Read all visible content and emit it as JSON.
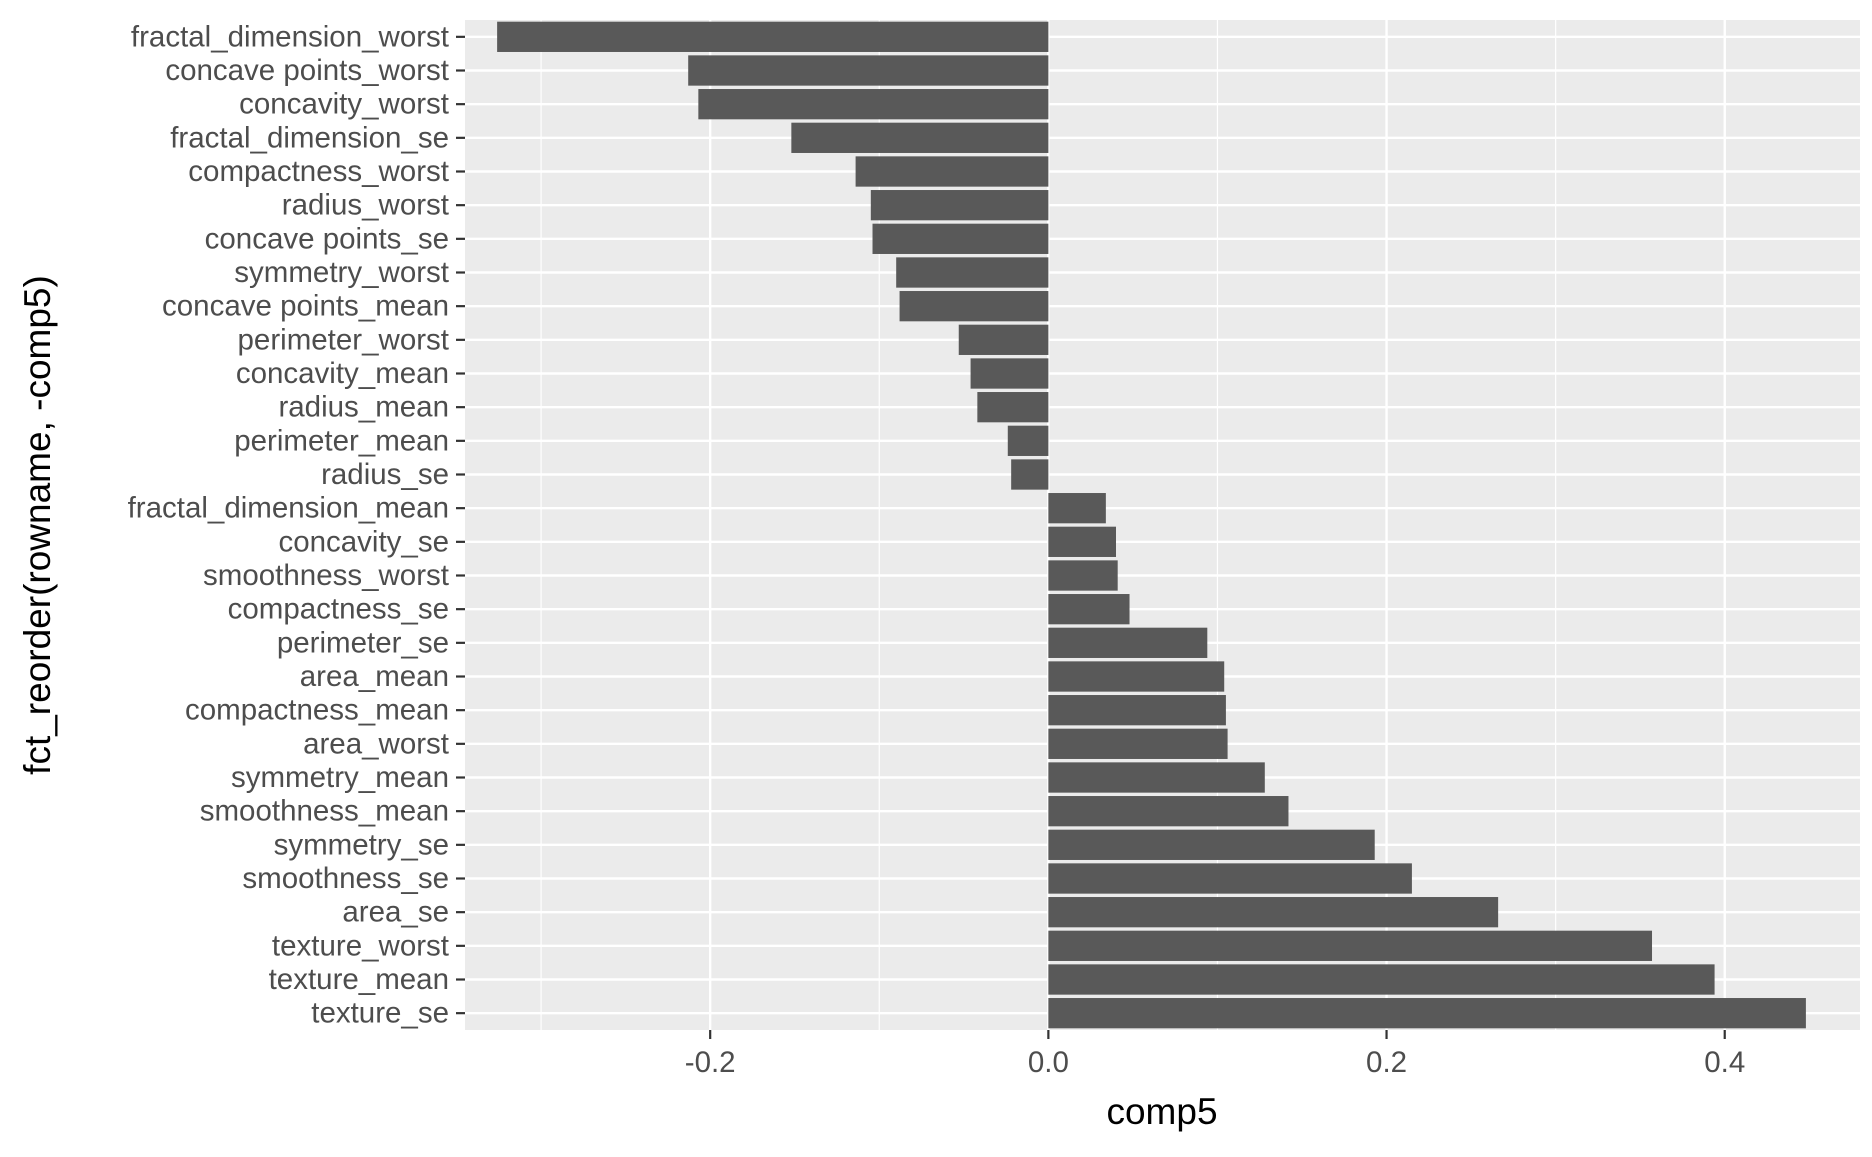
{
  "chart_data": {
    "type": "bar",
    "orientation": "horizontal",
    "xlabel": "comp5",
    "ylabel": "fct_reorder(rowname, -comp5)",
    "xlim": [
      -0.345,
      0.48
    ],
    "xticks": [
      -0.2,
      0.0,
      0.2,
      0.4
    ],
    "xtick_labels": [
      "-0.2",
      "0.0",
      "0.2",
      "0.4"
    ],
    "grid": true,
    "colors": {
      "bar": "#595959",
      "panel": "#ebebeb",
      "grid": "#ffffff",
      "text": "#4d4d4d",
      "title": "#000000"
    },
    "categories": [
      "fractal_dimension_worst",
      "concave points_worst",
      "concavity_worst",
      "fractal_dimension_se",
      "compactness_worst",
      "radius_worst",
      "concave points_se",
      "symmetry_worst",
      "concave points_mean",
      "perimeter_worst",
      "concavity_mean",
      "radius_mean",
      "perimeter_mean",
      "radius_se",
      "fractal_dimension_mean",
      "concavity_se",
      "smoothness_worst",
      "compactness_se",
      "perimeter_se",
      "area_mean",
      "compactness_mean",
      "area_worst",
      "symmetry_mean",
      "smoothness_mean",
      "symmetry_se",
      "smoothness_se",
      "area_se",
      "texture_worst",
      "texture_mean",
      "texture_se"
    ],
    "values": [
      -0.326,
      -0.213,
      -0.207,
      -0.152,
      -0.114,
      -0.105,
      -0.104,
      -0.09,
      -0.088,
      -0.053,
      -0.046,
      -0.042,
      -0.024,
      -0.022,
      0.034,
      0.04,
      0.041,
      0.048,
      0.094,
      0.104,
      0.105,
      0.106,
      0.128,
      0.142,
      0.193,
      0.215,
      0.266,
      0.357,
      0.394,
      0.448
    ]
  }
}
